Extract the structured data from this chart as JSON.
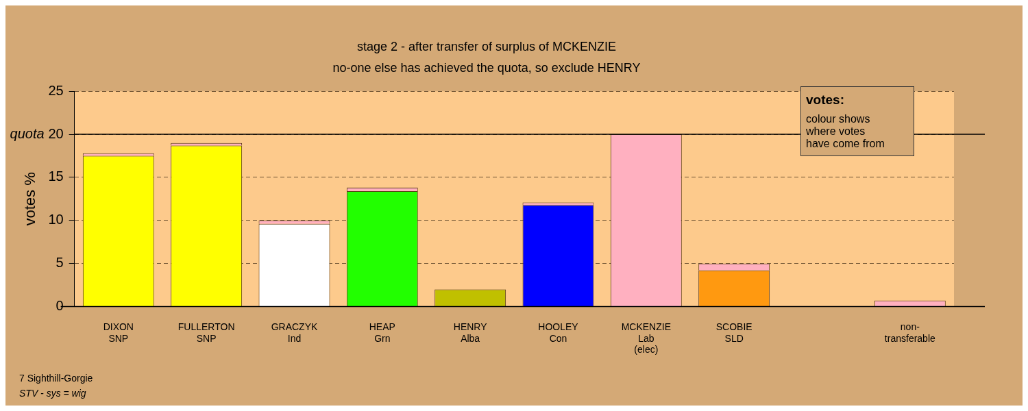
{
  "chart_data": {
    "type": "bar",
    "title": "stage 2 - after transfer of surplus of MCKENZIE",
    "subtitle": "no-one else has achieved the quota, so exclude HENRY",
    "ylabel": "votes %",
    "categories": [
      "DIXON\nSNP",
      "FULLERTON\nSNP",
      "GRACZYK\nInd",
      "HEAP\nGrn",
      "HENRY\nAlba",
      "HOOLEY\nCon",
      "MCKENZIE\nLab\n(elec)",
      "SCOBIE\nSLD",
      null,
      "non-\ntransferable"
    ],
    "stacked": true,
    "series": [
      {
        "colors": [
          "#ffff00",
          "#ffff00",
          "#ffffff",
          "#22ff00",
          "#c0c000",
          "#0000ff",
          "#ffb0c0",
          "#ff9910",
          null,
          null
        ],
        "values": [
          17.5,
          18.7,
          9.6,
          13.4,
          2.0,
          11.8,
          20,
          4.2,
          null,
          0
        ]
      },
      {
        "color": "#ffb0c0",
        "values": [
          0.3,
          0.3,
          0.4,
          0.4,
          0,
          0.3,
          null,
          0.8,
          null,
          0.7
        ]
      }
    ],
    "ylim": [
      0,
      25
    ],
    "yticks": [
      0,
      5,
      10,
      15,
      20,
      25
    ],
    "grid": "y",
    "legend": false,
    "ref_lines": [
      {
        "axis": "y",
        "value": 20,
        "label": "quota"
      }
    ],
    "annotations": [
      "votes:",
      "colour shows\nwhere votes\nhave come from",
      "7 Sighthill-Gorgie",
      "STV - sys = wig"
    ]
  }
}
